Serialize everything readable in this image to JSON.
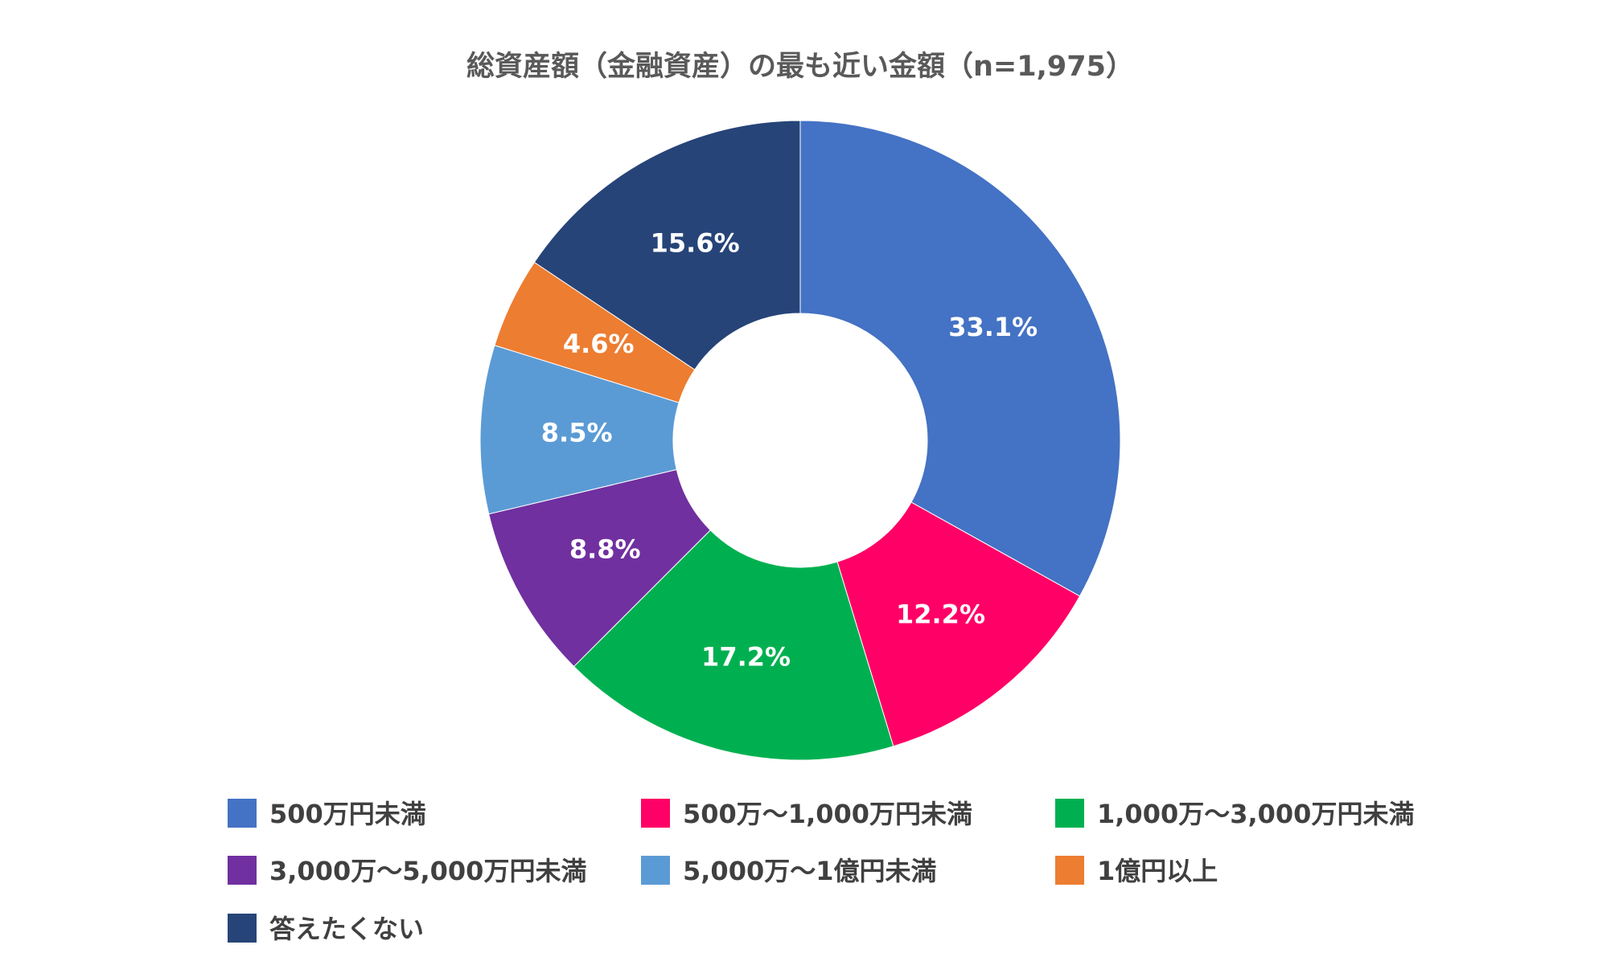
{
  "chart_data": {
    "type": "pie",
    "variant": "donut",
    "title": "総資産額（金融資産）の最も近い金額（n=1,975）",
    "categories": [
      "500万円未満",
      "500万～1,000万円未満",
      "1,000万～3,000万円未満",
      "3,000万～5,000万円未満",
      "5,000万～1億円未満",
      "1億円以上",
      "答えたくない"
    ],
    "values": [
      33.1,
      12.2,
      17.2,
      8.8,
      8.5,
      4.6,
      15.6
    ],
    "value_labels": [
      "33.1%",
      "12.2%",
      "17.2%",
      "8.8%",
      "8.5%",
      "4.6%",
      "15.6%"
    ],
    "colors": [
      "#4472C4",
      "#FF0066",
      "#00B050",
      "#7030A0",
      "#5B9BD5",
      "#ED7D31",
      "#264478"
    ],
    "start_angle": "12 o'clock",
    "direction": "clockwise",
    "legend_position": "bottom"
  }
}
